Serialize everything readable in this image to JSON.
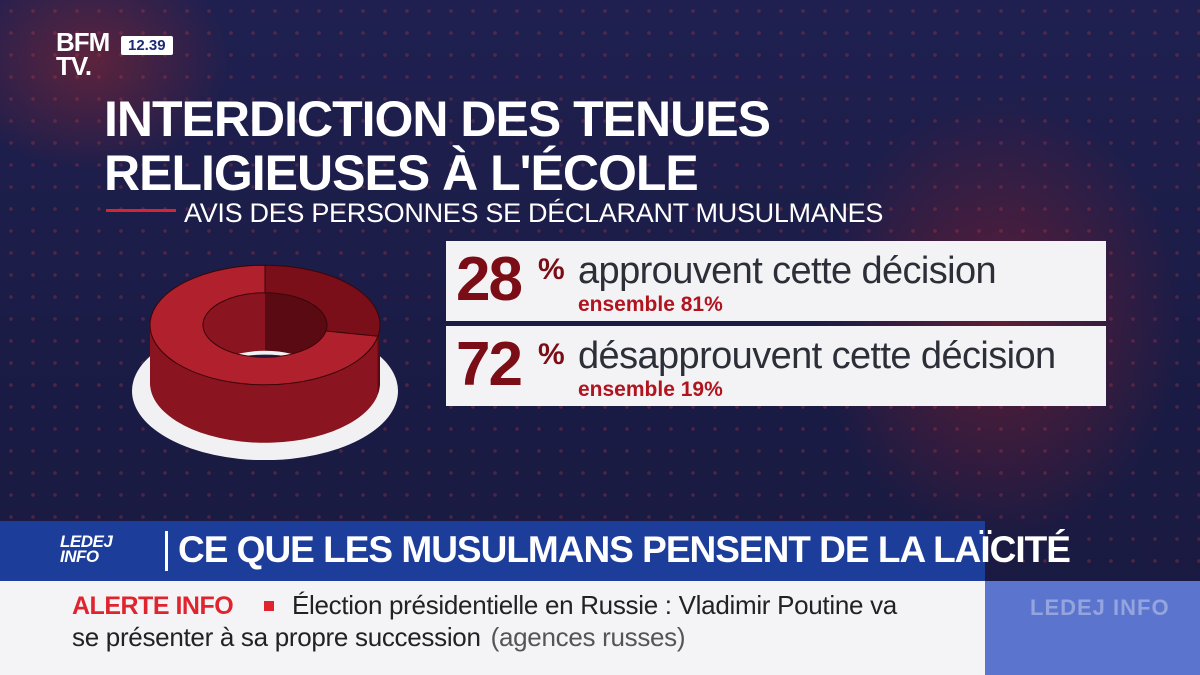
{
  "channel": {
    "logo_line1": "BFM",
    "logo_line2": "TV.",
    "clock": "12.39"
  },
  "graphic": {
    "title": "INTERDICTION DES TENUES\nRELIGIEUSES À L'ÉCOLE",
    "subtitle": "AVIS DES PERSONNES SE DÉCLARANT MUSULMANES",
    "stats": [
      {
        "number": "28",
        "pct": "%",
        "label": "approuvent cette décision",
        "sub": "ensemble 81%"
      },
      {
        "number": "72",
        "pct": "%",
        "label": "désapprouvent cette décision",
        "sub": "ensemble 19%"
      }
    ]
  },
  "chart_data": {
    "type": "pie",
    "title": "INTERDICTION DES TENUES RELIGIEUSES À L'ÉCOLE",
    "subtitle": "AVIS DES PERSONNES SE DÉCLARANT MUSULMANES",
    "series": [
      {
        "name": "approuvent cette décision",
        "value": 28,
        "overall": 81
      },
      {
        "name": "désapprouvent cette décision",
        "value": 72,
        "overall": 19
      }
    ],
    "colors": [
      "#7a0f1a",
      "#b0202d"
    ]
  },
  "banner": {
    "show_logo_line1": "LEDEJ",
    "show_logo_line2": "INFO",
    "title": "CE QUE LES MUSULMANS PENSENT DE LA LAÏCITÉ"
  },
  "ticker": {
    "tag": "ALERTE INFO",
    "line1": "Élection présidentielle en Russie : Vladimir Poutine va",
    "line2": "se présenter à sa propre succession",
    "source": "(agences russes)",
    "side_text": "LEDEJ INFO"
  },
  "colors": {
    "accent": "#d62430",
    "stat_number": "#7b0d16",
    "banner": "#1d3d9a",
    "background": "#1c1d45"
  }
}
